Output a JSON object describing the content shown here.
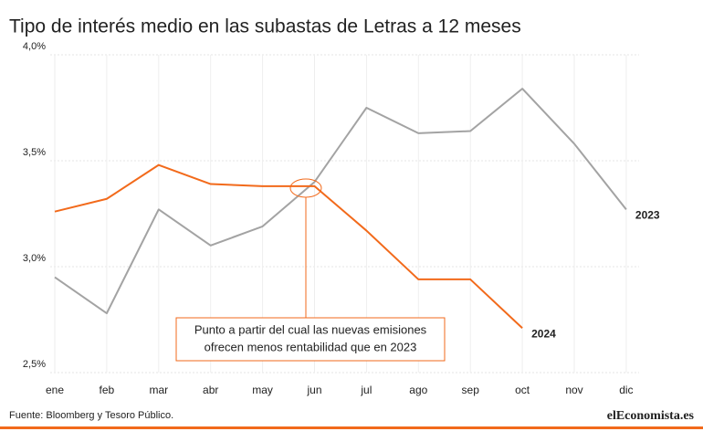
{
  "chart_data": {
    "type": "line",
    "title": "Tipo de interés medio en las subastas de Letras a 12 meses",
    "categories": [
      "ene",
      "feb",
      "mar",
      "abr",
      "may",
      "jun",
      "jul",
      "ago",
      "sep",
      "oct",
      "nov",
      "dic"
    ],
    "series": [
      {
        "name": "2023",
        "color": "#a3a3a3",
        "values": [
          2.95,
          2.78,
          3.27,
          3.1,
          3.19,
          3.4,
          3.75,
          3.63,
          3.64,
          3.84,
          3.58,
          3.27
        ]
      },
      {
        "name": "2024",
        "color": "#f26a1b",
        "values": [
          3.26,
          3.32,
          3.48,
          3.39,
          3.38,
          3.38,
          3.17,
          2.94,
          2.94,
          2.71,
          null,
          null
        ]
      }
    ],
    "ylim": [
      2.5,
      4.0
    ],
    "yticks": [
      {
        "value": 2.5,
        "label": "2,5%"
      },
      {
        "value": 3.0,
        "label": "3,0%"
      },
      {
        "value": 3.5,
        "label": "3,5%"
      },
      {
        "value": 4.0,
        "label": "4,0%"
      }
    ],
    "grid": true,
    "annotation": [
      "Punto a partir del cual las nuevas emisiones",
      "ofrecen menos rentabilidad que en 2023"
    ],
    "source": "Fuente: Bloomberg  y Tesoro Público.",
    "logo": "elEconomista.es"
  }
}
